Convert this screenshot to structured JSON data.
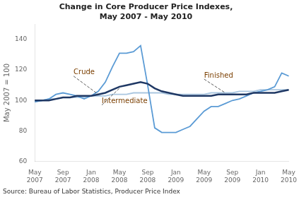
{
  "chart_data": {
    "type": "line",
    "title": "Change in Core Producer Price Indexes,\nMay 2007 - May 2010",
    "y_label": "May 2007 = 100",
    "source": "Source: Bureau of Labor Statistics, Producer Price Index",
    "categories": [
      "May\n2007",
      null,
      null,
      null,
      "Sep\n2007",
      null,
      null,
      null,
      "Jan\n2008",
      null,
      null,
      null,
      "May\n2008",
      null,
      null,
      null,
      "Sep\n2008",
      null,
      null,
      null,
      "Jan\n2009",
      null,
      null,
      null,
      "May\n2009",
      null,
      null,
      null,
      "Sep\n2009",
      null,
      null,
      null,
      "Jan\n2010",
      null,
      null,
      null,
      "May\n2010"
    ],
    "series": [
      {
        "name": "Finished",
        "color": "#a9c6e0",
        "values": [
          100,
          100,
          101,
          101,
          102,
          102,
          102,
          102,
          103,
          103,
          103,
          104,
          104,
          104,
          105,
          105,
          105,
          105,
          105,
          104,
          104,
          104,
          104,
          104,
          104,
          105,
          105,
          105,
          105,
          106,
          106,
          106,
          107,
          107,
          107,
          107,
          107
        ]
      },
      {
        "name": "Crude",
        "color": "#5b9bd5",
        "values": [
          99,
          100,
          101,
          104,
          105,
          104,
          103,
          101,
          103,
          106,
          112,
          122,
          131,
          131,
          132,
          136,
          110,
          82,
          79,
          79,
          79,
          81,
          83,
          88,
          93,
          96,
          96,
          98,
          100,
          101,
          103,
          105,
          106,
          107,
          109,
          118,
          116
        ]
      },
      {
        "name": "Intermediate",
        "color": "#1f3864",
        "values": [
          100,
          100,
          100,
          101,
          102,
          102,
          103,
          103,
          103,
          104,
          105,
          107,
          109,
          110,
          111,
          112,
          111,
          108,
          106,
          105,
          104,
          103,
          103,
          103,
          103,
          103,
          104,
          104,
          104,
          104,
          104,
          105,
          105,
          105,
          105,
          106,
          107
        ]
      }
    ],
    "ylim": [
      60,
      150
    ],
    "yticks": [
      60,
      80,
      100,
      120,
      140
    ],
    "grid": false,
    "annotations": [
      {
        "text": "Crude",
        "xy": [
          9,
          104
        ],
        "xytext": [
          5.5,
          116
        ],
        "color": "#7b3f00"
      },
      {
        "text": "Intermediate",
        "xy": [
          12,
          108
        ],
        "xytext": [
          9.5,
          97
        ],
        "color": "#7b3f00"
      },
      {
        "text": "Finished",
        "xy": [
          27,
          105
        ],
        "xytext": [
          24,
          114
        ],
        "color": "#7b3f00"
      }
    ]
  }
}
